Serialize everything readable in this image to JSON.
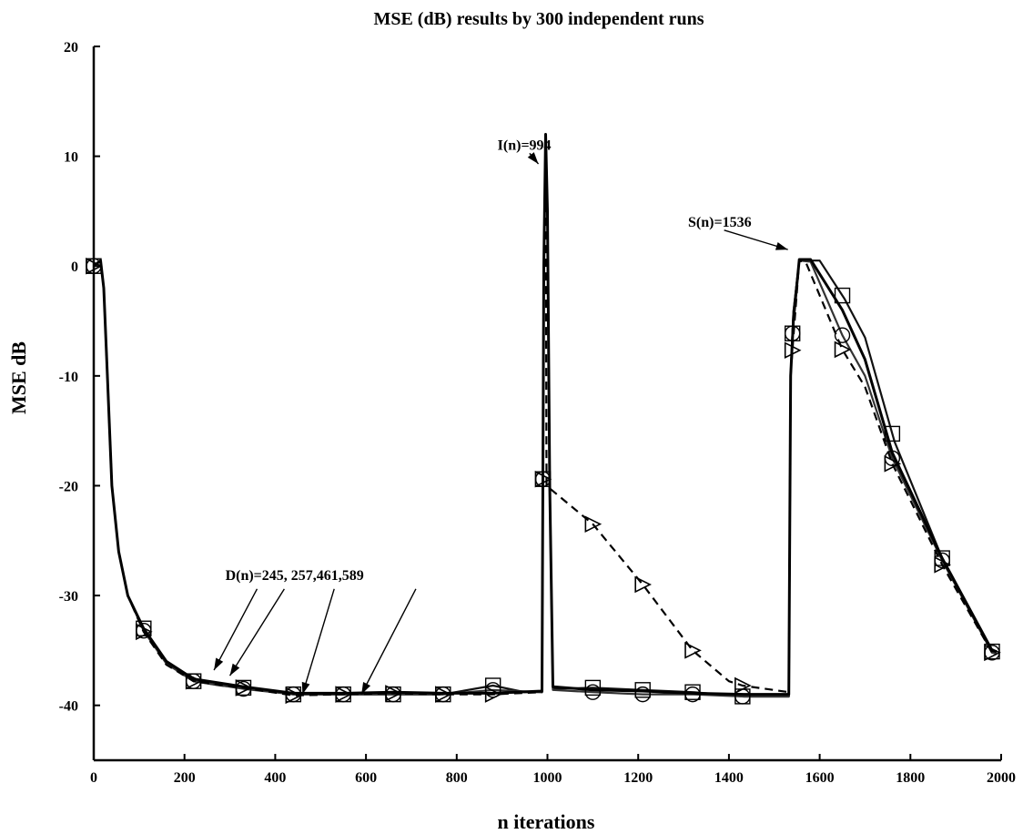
{
  "chart_data": {
    "type": "line",
    "title": "MSE (dB) results by 300 independent runs",
    "xlabel": "n iterations",
    "ylabel": "MSE dB",
    "xlim": [
      0,
      2000
    ],
    "ylim": [
      -45,
      20
    ],
    "x_ticks": [
      0,
      200,
      400,
      600,
      800,
      1000,
      1200,
      1400,
      1600,
      1800,
      2000
    ],
    "y_ticks": [
      -40,
      -30,
      -20,
      -10,
      0,
      10,
      20
    ],
    "grid": false,
    "series": [
      {
        "marker": "square",
        "style": "solid",
        "color": "#111111",
        "points": [
          [
            0,
            0
          ],
          [
            15,
            0.5
          ],
          [
            22,
            -2
          ],
          [
            30,
            -10
          ],
          [
            40,
            -20
          ],
          [
            55,
            -26
          ],
          [
            75,
            -30
          ],
          [
            110,
            -33
          ],
          [
            160,
            -36
          ],
          [
            220,
            -37.8
          ],
          [
            280,
            -38.2
          ],
          [
            330,
            -38.4
          ],
          [
            440,
            -39
          ],
          [
            550,
            -39
          ],
          [
            660,
            -39
          ],
          [
            770,
            -39
          ],
          [
            880,
            -38.2
          ],
          [
            950,
            -38.8
          ],
          [
            988,
            -38.8
          ],
          [
            992,
            0
          ],
          [
            996,
            12
          ],
          [
            1000,
            5
          ],
          [
            1005,
            -20
          ],
          [
            1012,
            -38.5
          ],
          [
            1100,
            -38.4
          ],
          [
            1210,
            -38.6
          ],
          [
            1320,
            -38.8
          ],
          [
            1433,
            -39.2
          ],
          [
            1532,
            -39.2
          ],
          [
            1536,
            -10
          ],
          [
            1542,
            -4.2
          ],
          [
            1555,
            0.5
          ],
          [
            1600,
            0.5
          ],
          [
            1655,
            -3
          ],
          [
            1700,
            -6.5
          ],
          [
            1765,
            -16
          ],
          [
            1870,
            -26.6
          ],
          [
            1980,
            -35.1
          ],
          [
            1990,
            -35.2
          ]
        ],
        "marker_x": [
          0,
          110,
          220,
          330,
          440,
          550,
          660,
          770,
          880,
          990,
          1100,
          1210,
          1320,
          1430,
          1540,
          1650,
          1760,
          1870,
          1980
        ]
      },
      {
        "marker": "circle",
        "style": "solid",
        "color": "#333333",
        "points": [
          [
            0,
            0
          ],
          [
            15,
            0.5
          ],
          [
            22,
            -2
          ],
          [
            30,
            -10
          ],
          [
            40,
            -20
          ],
          [
            55,
            -26
          ],
          [
            75,
            -30
          ],
          [
            110,
            -33.2
          ],
          [
            160,
            -36.2
          ],
          [
            220,
            -37.8
          ],
          [
            330,
            -38.5
          ],
          [
            440,
            -39
          ],
          [
            550,
            -39
          ],
          [
            660,
            -39
          ],
          [
            770,
            -39
          ],
          [
            880,
            -38.6
          ],
          [
            988,
            -38.8
          ],
          [
            992,
            0
          ],
          [
            996,
            12
          ],
          [
            1000,
            5
          ],
          [
            1005,
            -20
          ],
          [
            1012,
            -38.6
          ],
          [
            1100,
            -38.8
          ],
          [
            1210,
            -39
          ],
          [
            1320,
            -39
          ],
          [
            1433,
            -39.2
          ],
          [
            1532,
            -39.2
          ],
          [
            1536,
            -10
          ],
          [
            1542,
            -4.2
          ],
          [
            1555,
            0.5
          ],
          [
            1580,
            0.4
          ],
          [
            1650,
            -6.3
          ],
          [
            1700,
            -10
          ],
          [
            1760,
            -17.5
          ],
          [
            1870,
            -26.8
          ],
          [
            1980,
            -35.2
          ],
          [
            1990,
            -35.3
          ]
        ],
        "marker_x": [
          0,
          110,
          220,
          330,
          440,
          550,
          660,
          770,
          880,
          990,
          1100,
          1210,
          1320,
          1430,
          1540,
          1650,
          1760,
          1870,
          1980
        ]
      },
      {
        "marker": "triangle-right",
        "style": "dashed",
        "color": "#000000",
        "points": [
          [
            0,
            0
          ],
          [
            15,
            0.5
          ],
          [
            22,
            -2
          ],
          [
            30,
            -10
          ],
          [
            40,
            -20
          ],
          [
            55,
            -26
          ],
          [
            75,
            -30
          ],
          [
            110,
            -33.3
          ],
          [
            160,
            -36.3
          ],
          [
            220,
            -37.8
          ],
          [
            330,
            -38.4
          ],
          [
            440,
            -39.1
          ],
          [
            550,
            -39
          ],
          [
            660,
            -38.9
          ],
          [
            770,
            -39
          ],
          [
            880,
            -39
          ],
          [
            988,
            -38.8
          ],
          [
            992,
            0
          ],
          [
            996,
            12
          ],
          [
            998,
            -20
          ],
          [
            1100,
            -23.5
          ],
          [
            1210,
            -29
          ],
          [
            1320,
            -35
          ],
          [
            1400,
            -37.8
          ],
          [
            1430,
            -38.2
          ],
          [
            1532,
            -38.8
          ],
          [
            1536,
            -10
          ],
          [
            1542,
            -6.5
          ],
          [
            1555,
            0.5
          ],
          [
            1570,
            0.3
          ],
          [
            1650,
            -7.6
          ],
          [
            1700,
            -11
          ],
          [
            1760,
            -18
          ],
          [
            1870,
            -27.2
          ],
          [
            1980,
            -35.2
          ],
          [
            1990,
            -35.3
          ]
        ],
        "marker_x": [
          0,
          110,
          220,
          330,
          440,
          550,
          660,
          770,
          880,
          990,
          1100,
          1210,
          1320,
          1430,
          1540,
          1650,
          1760,
          1870,
          1980
        ]
      },
      {
        "marker": "none",
        "style": "solid",
        "color": "#000000",
        "points": [
          [
            0,
            0
          ],
          [
            15,
            0.5
          ],
          [
            22,
            -2
          ],
          [
            30,
            -10
          ],
          [
            40,
            -20
          ],
          [
            55,
            -26
          ],
          [
            75,
            -30
          ],
          [
            110,
            -33
          ],
          [
            160,
            -36
          ],
          [
            220,
            -37.6
          ],
          [
            330,
            -38.3
          ],
          [
            440,
            -38.9
          ],
          [
            550,
            -38.9
          ],
          [
            660,
            -38.8
          ],
          [
            770,
            -38.9
          ],
          [
            880,
            -38.9
          ],
          [
            988,
            -38.7
          ],
          [
            992,
            0
          ],
          [
            996,
            12
          ],
          [
            1000,
            5
          ],
          [
            1005,
            -20
          ],
          [
            1012,
            -38.3
          ],
          [
            1100,
            -38.6
          ],
          [
            1210,
            -38.7
          ],
          [
            1320,
            -38.9
          ],
          [
            1433,
            -39
          ],
          [
            1532,
            -39
          ],
          [
            1536,
            -10
          ],
          [
            1542,
            -5
          ],
          [
            1555,
            0.6
          ],
          [
            1580,
            0.6
          ],
          [
            1650,
            -4
          ],
          [
            1700,
            -8.5
          ],
          [
            1760,
            -17
          ],
          [
            1870,
            -26.6
          ],
          [
            1980,
            -35
          ],
          [
            1990,
            -35.1
          ]
        ],
        "marker_x": []
      }
    ],
    "annotations": [
      {
        "text": "I(n)=994",
        "x": 890,
        "y": 10.6,
        "arrow_to": [
          980,
          9.3
        ]
      },
      {
        "text": "S(n)=1536",
        "x": 1310,
        "y": 3.6,
        "arrow_to": [
          1530,
          1.5
        ]
      },
      {
        "text": "D(n)=245, 257,461,589",
        "x": 290,
        "y": -28.6,
        "arrow_to_list": [
          [
            265,
            -36.8
          ],
          [
            300,
            -37.3
          ],
          [
            460,
            -39
          ],
          [
            590,
            -39
          ]
        ],
        "arrow_from_list": [
          [
            360,
            -29.4
          ],
          [
            420,
            -29.4
          ],
          [
            530,
            -29.4
          ],
          [
            710,
            -29.4
          ]
        ]
      }
    ]
  }
}
